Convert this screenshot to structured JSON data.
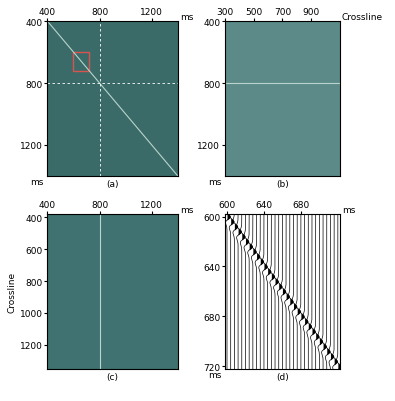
{
  "chart_data": [
    {
      "type": "image",
      "caption": "(a)",
      "x_label": "ms",
      "y_label": "ms",
      "xlim": [
        400,
        1400
      ],
      "ylim": [
        1400,
        400
      ],
      "xticks": [
        400,
        800,
        1200
      ],
      "yticks": [
        400,
        800,
        1200
      ],
      "color": "#3b6b68",
      "events": [
        {
          "x": [
            400,
            1400
          ],
          "y": [
            400,
            1400
          ]
        }
      ],
      "crosshair": {
        "x": 800,
        "y": 800
      },
      "box": {
        "x": [
          600,
          720
        ],
        "y": [
          600,
          720
        ],
        "color": "#d9534f"
      }
    },
    {
      "type": "image",
      "caption": "(b)",
      "x_label": "Crossline",
      "y_label": "ms",
      "xlim": [
        300,
        1100
      ],
      "ylim": [
        1400,
        400
      ],
      "xticks": [
        300,
        500,
        700,
        900
      ],
      "yticks": [
        400,
        800,
        1200
      ],
      "color": "#5b8a88",
      "events": [
        {
          "x": [
            300,
            1100
          ],
          "y": [
            800,
            800
          ]
        }
      ]
    },
    {
      "type": "image",
      "caption": "(c)",
      "x_label": "ms",
      "y_label": "Crossline",
      "xlim": [
        400,
        1400
      ],
      "ylim": [
        1350,
        380
      ],
      "xticks": [
        400,
        800,
        1200
      ],
      "yticks": [
        400,
        600,
        800,
        1000,
        1200
      ],
      "color": "#3f7270",
      "events": [
        {
          "x": [
            800,
            800
          ],
          "y": [
            380,
            1350
          ]
        }
      ]
    },
    {
      "type": "wiggle",
      "caption": "(d)",
      "x_label": "ms",
      "y_label": "ms",
      "xlim": [
        598,
        722
      ],
      "ylim": [
        722,
        598
      ],
      "xticks": [
        600,
        640,
        680
      ],
      "yticks": [
        600,
        640,
        680,
        720
      ],
      "color": "#000000",
      "trace_x": [
        600,
        604,
        608,
        612,
        616,
        620,
        624,
        628,
        632,
        636,
        640,
        644,
        648,
        652,
        656,
        660,
        664,
        668,
        672,
        676,
        680,
        684,
        688,
        692,
        696,
        700,
        704,
        708,
        712,
        716,
        720
      ],
      "arrival": [
        600,
        604,
        608,
        612,
        616,
        620,
        624,
        628,
        632,
        636,
        640,
        644,
        648,
        652,
        656,
        660,
        664,
        668,
        672,
        676,
        680,
        684,
        688,
        692,
        696,
        700,
        704,
        708,
        712,
        716,
        720
      ]
    }
  ]
}
